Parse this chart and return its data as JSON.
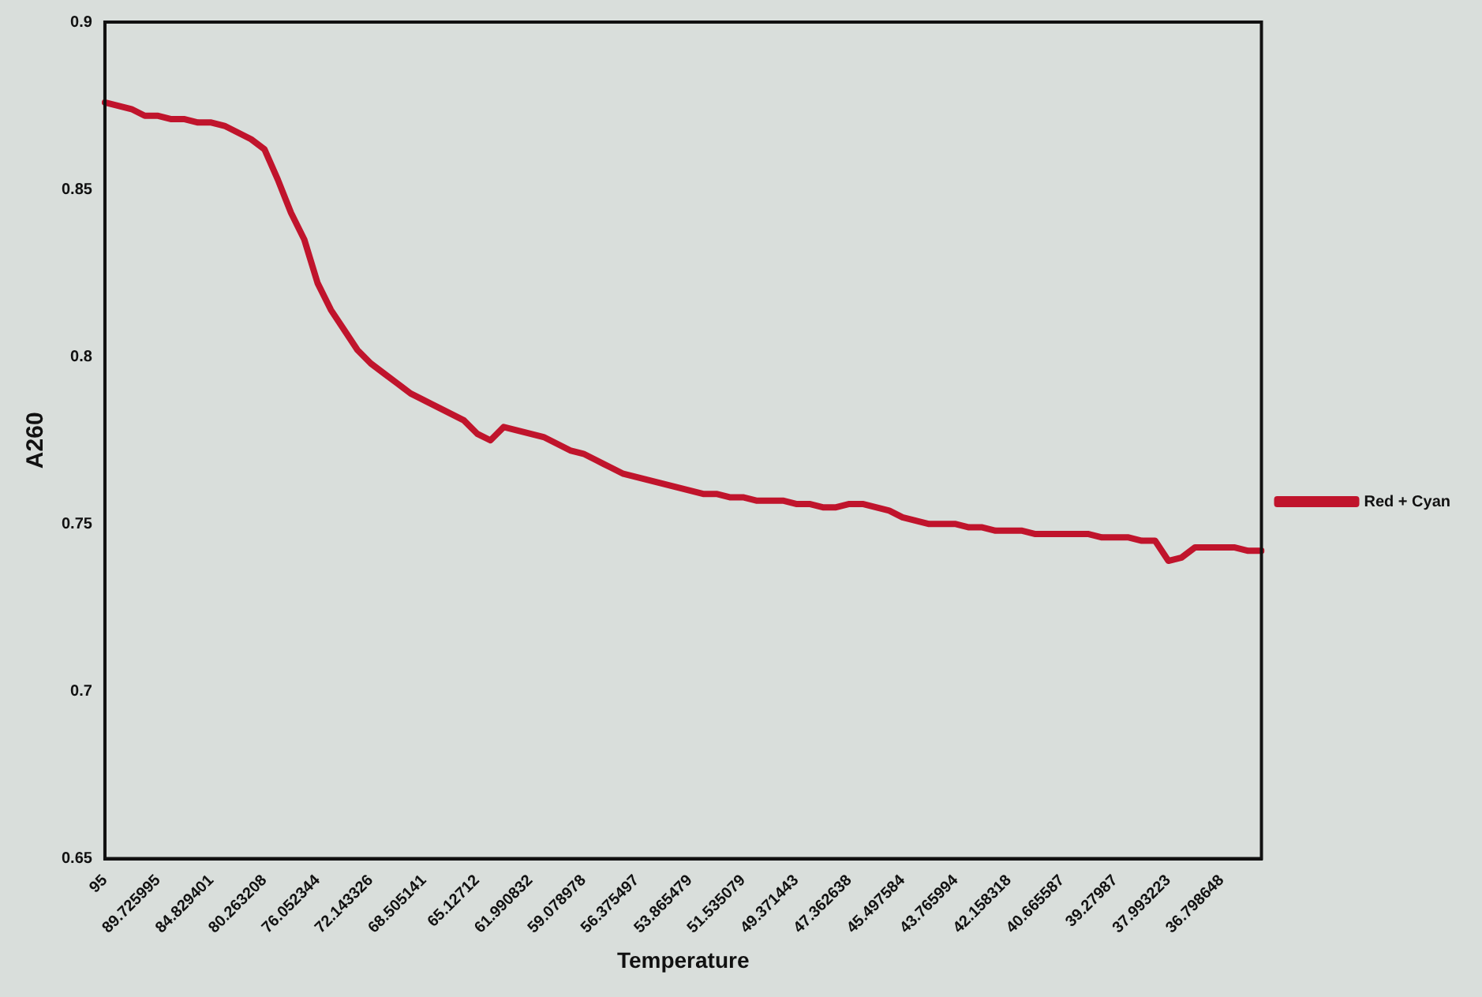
{
  "chart_data": {
    "type": "line",
    "xlabel": "Temperature",
    "ylabel": "A260",
    "categories": [
      "95",
      null,
      null,
      null,
      "89.725995",
      null,
      null,
      null,
      "84.829401",
      null,
      null,
      null,
      "80.263208",
      null,
      null,
      null,
      "76.052344",
      null,
      null,
      null,
      "72.143326",
      null,
      null,
      null,
      "68.505141",
      null,
      null,
      null,
      "65.12712",
      null,
      null,
      null,
      "61.990832",
      null,
      null,
      null,
      "59.078978",
      null,
      null,
      null,
      "56.375497",
      null,
      null,
      null,
      "53.865479",
      null,
      null,
      null,
      "51.535079",
      null,
      null,
      null,
      "49.371443",
      null,
      null,
      null,
      "47.362638",
      null,
      null,
      null,
      "45.497584",
      null,
      null,
      null,
      "43.765994",
      null,
      null,
      null,
      "42.158318",
      null,
      null,
      null,
      "40.665587",
      null,
      null,
      null,
      "39.27987",
      null,
      null,
      null,
      "37.993223",
      null,
      null,
      null,
      "36.798648",
      null,
      null,
      null
    ],
    "series": [
      {
        "name": "Red + Cyan",
        "color": "#c0142c",
        "values": [
          0.876,
          0.875,
          0.874,
          0.872,
          0.872,
          0.871,
          0.871,
          0.87,
          0.87,
          0.869,
          0.867,
          0.865,
          0.862,
          0.853,
          0.843,
          0.835,
          0.822,
          0.814,
          0.808,
          0.802,
          0.798,
          0.795,
          0.792,
          0.789,
          0.787,
          0.785,
          0.783,
          0.781,
          0.777,
          0.775,
          0.779,
          0.778,
          0.777,
          0.776,
          0.774,
          0.772,
          0.771,
          0.769,
          0.767,
          0.765,
          0.764,
          0.763,
          0.762,
          0.761,
          0.76,
          0.759,
          0.759,
          0.758,
          0.758,
          0.757,
          0.757,
          0.757,
          0.756,
          0.756,
          0.755,
          0.755,
          0.756,
          0.756,
          0.755,
          0.754,
          0.752,
          0.751,
          0.75,
          0.75,
          0.75,
          0.749,
          0.749,
          0.748,
          0.748,
          0.748,
          0.747,
          0.747,
          0.747,
          0.747,
          0.747,
          0.746,
          0.746,
          0.746,
          0.745,
          0.745,
          0.739,
          0.74,
          0.743,
          0.743,
          0.743,
          0.743,
          0.742,
          0.742
        ]
      }
    ],
    "ylim": [
      0.65,
      0.9
    ],
    "yticks": [
      0.65,
      0.7,
      0.75,
      0.8,
      0.85,
      0.9
    ],
    "grid": false,
    "legend": "right",
    "marker": "none",
    "line_style": "solid"
  }
}
